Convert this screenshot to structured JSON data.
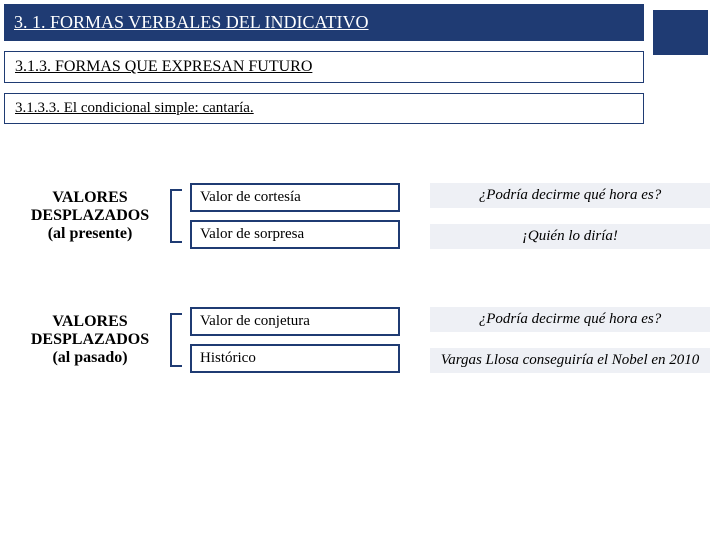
{
  "headers": {
    "main": "3. 1. FORMAS VERBALES DEL INDICATIVO",
    "sub1": "3.1.3.  FORMAS QUE EXPRESAN FUTURO",
    "sub2": "3.1.3.3. El condicional simple: cantaría."
  },
  "groups": [
    {
      "label_line1": "VALORES",
      "label_line2": "DESPLAZADOS",
      "label_line3": "(al presente)",
      "rows": [
        {
          "value": "Valor de cortesía",
          "example": "¿Podría decirme qué hora es?"
        },
        {
          "value": "Valor de sorpresa",
          "example": "¡Quién lo diría!"
        }
      ]
    },
    {
      "label_line1": "VALORES",
      "label_line2": "DESPLAZADOS",
      "label_line3": "(al pasado)",
      "rows": [
        {
          "value": "Valor de conjetura",
          "example": "¿Podría decirme qué hora es?"
        },
        {
          "value": "Histórico",
          "example": "Vargas Llosa conseguiría el Nobel en 2010"
        }
      ]
    }
  ]
}
